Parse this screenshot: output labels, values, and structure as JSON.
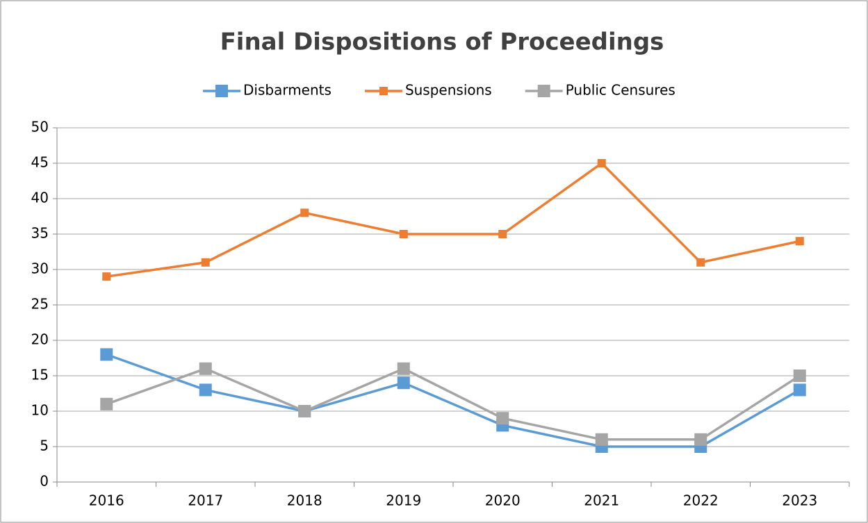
{
  "chart_data": {
    "type": "line",
    "title": "Final Dispositions of Proceedings",
    "categories": [
      "2016",
      "2017",
      "2018",
      "2019",
      "2020",
      "2021",
      "2022",
      "2023"
    ],
    "series": [
      {
        "name": "Disbarments",
        "color": "#5b9bd5",
        "values": [
          18,
          13,
          10,
          14,
          8,
          5,
          5,
          13
        ]
      },
      {
        "name": "Suspensions",
        "color": "#ed7d31",
        "values": [
          29,
          31,
          38,
          35,
          35,
          45,
          31,
          34
        ]
      },
      {
        "name": "Public Censures",
        "color": "#a5a5a5",
        "values": [
          11,
          16,
          10,
          16,
          9,
          6,
          6,
          15
        ]
      }
    ],
    "ylim": [
      0,
      50
    ],
    "yticks": [
      0,
      5,
      10,
      15,
      20,
      25,
      30,
      35,
      40,
      45,
      50
    ],
    "grid": true,
    "legend": "top"
  }
}
